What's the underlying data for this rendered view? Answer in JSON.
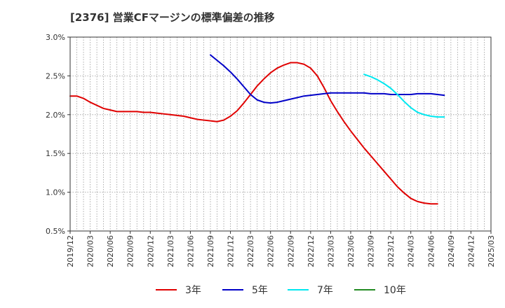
{
  "title": "[2376]  営業CFマージンの標準偏差の推移",
  "chart_data": {
    "type": "line",
    "title": "[2376]  営業CFマージンの標準偏差の推移",
    "xlabel": "",
    "ylabel": "",
    "ylim": [
      0.5,
      3.0
    ],
    "yticks": [
      0.5,
      1.0,
      1.5,
      2.0,
      2.5,
      3.0
    ],
    "ytick_labels": [
      "0.5%",
      "1.0%",
      "1.5%",
      "2.0%",
      "2.5%",
      "3.0%"
    ],
    "x_range": [
      "2019/12",
      "2025/03"
    ],
    "xtick_labels": [
      "2019/12",
      "2020/03",
      "2020/06",
      "2020/09",
      "2020/12",
      "2021/03",
      "2021/06",
      "2021/09",
      "2021/12",
      "2022/03",
      "2022/06",
      "2022/09",
      "2022/12",
      "2023/03",
      "2023/06",
      "2023/09",
      "2023/12",
      "2024/03",
      "2024/06",
      "2024/09",
      "2024/12",
      "2025/03"
    ],
    "grid": true,
    "legend_position": "bottom",
    "series": [
      {
        "name": "3年",
        "color": "#e00000",
        "points": [
          [
            "2019/12",
            2.24
          ],
          [
            "2020/01",
            2.24
          ],
          [
            "2020/02",
            2.21
          ],
          [
            "2020/03",
            2.16
          ],
          [
            "2020/04",
            2.12
          ],
          [
            "2020/05",
            2.08
          ],
          [
            "2020/06",
            2.06
          ],
          [
            "2020/07",
            2.04
          ],
          [
            "2020/08",
            2.04
          ],
          [
            "2020/09",
            2.04
          ],
          [
            "2020/10",
            2.04
          ],
          [
            "2020/11",
            2.03
          ],
          [
            "2020/12",
            2.03
          ],
          [
            "2021/01",
            2.02
          ],
          [
            "2021/02",
            2.01
          ],
          [
            "2021/03",
            2.0
          ],
          [
            "2021/04",
            1.99
          ],
          [
            "2021/05",
            1.98
          ],
          [
            "2021/06",
            1.96
          ],
          [
            "2021/07",
            1.94
          ],
          [
            "2021/08",
            1.93
          ],
          [
            "2021/09",
            1.92
          ],
          [
            "2021/10",
            1.91
          ],
          [
            "2021/11",
            1.93
          ],
          [
            "2021/12",
            1.98
          ],
          [
            "2022/01",
            2.05
          ],
          [
            "2022/02",
            2.15
          ],
          [
            "2022/03",
            2.26
          ],
          [
            "2022/04",
            2.37
          ],
          [
            "2022/05",
            2.46
          ],
          [
            "2022/06",
            2.54
          ],
          [
            "2022/07",
            2.6
          ],
          [
            "2022/08",
            2.64
          ],
          [
            "2022/09",
            2.67
          ],
          [
            "2022/10",
            2.67
          ],
          [
            "2022/11",
            2.65
          ],
          [
            "2022/12",
            2.6
          ],
          [
            "2023/01",
            2.5
          ],
          [
            "2023/02",
            2.35
          ],
          [
            "2023/03",
            2.18
          ],
          [
            "2023/04",
            2.04
          ],
          [
            "2023/05",
            1.91
          ],
          [
            "2023/06",
            1.79
          ],
          [
            "2023/07",
            1.68
          ],
          [
            "2023/08",
            1.57
          ],
          [
            "2023/09",
            1.47
          ],
          [
            "2023/10",
            1.37
          ],
          [
            "2023/11",
            1.27
          ],
          [
            "2023/12",
            1.17
          ],
          [
            "2024/01",
            1.07
          ],
          [
            "2024/02",
            0.99
          ],
          [
            "2024/03",
            0.92
          ],
          [
            "2024/04",
            0.88
          ],
          [
            "2024/05",
            0.86
          ],
          [
            "2024/06",
            0.85
          ],
          [
            "2024/07",
            0.85
          ]
        ]
      },
      {
        "name": "5年",
        "color": "#0000c8",
        "points": [
          [
            "2021/09",
            2.77
          ],
          [
            "2021/10",
            2.7
          ],
          [
            "2021/11",
            2.63
          ],
          [
            "2021/12",
            2.55
          ],
          [
            "2022/01",
            2.46
          ],
          [
            "2022/02",
            2.36
          ],
          [
            "2022/03",
            2.26
          ],
          [
            "2022/04",
            2.19
          ],
          [
            "2022/05",
            2.16
          ],
          [
            "2022/06",
            2.15
          ],
          [
            "2022/07",
            2.16
          ],
          [
            "2022/08",
            2.18
          ],
          [
            "2022/09",
            2.2
          ],
          [
            "2022/10",
            2.22
          ],
          [
            "2022/11",
            2.24
          ],
          [
            "2022/12",
            2.25
          ],
          [
            "2023/01",
            2.26
          ],
          [
            "2023/02",
            2.27
          ],
          [
            "2023/03",
            2.28
          ],
          [
            "2023/04",
            2.28
          ],
          [
            "2023/05",
            2.28
          ],
          [
            "2023/06",
            2.28
          ],
          [
            "2023/07",
            2.28
          ],
          [
            "2023/08",
            2.28
          ],
          [
            "2023/09",
            2.27
          ],
          [
            "2023/10",
            2.27
          ],
          [
            "2023/11",
            2.27
          ],
          [
            "2023/12",
            2.26
          ],
          [
            "2024/01",
            2.26
          ],
          [
            "2024/02",
            2.26
          ],
          [
            "2024/03",
            2.26
          ],
          [
            "2024/04",
            2.27
          ],
          [
            "2024/05",
            2.27
          ],
          [
            "2024/06",
            2.27
          ],
          [
            "2024/07",
            2.26
          ],
          [
            "2024/08",
            2.25
          ]
        ]
      },
      {
        "name": "7年",
        "color": "#00e8f0",
        "points": [
          [
            "2023/08",
            2.52
          ],
          [
            "2023/09",
            2.49
          ],
          [
            "2023/10",
            2.45
          ],
          [
            "2023/11",
            2.4
          ],
          [
            "2023/12",
            2.34
          ],
          [
            "2024/01",
            2.26
          ],
          [
            "2024/02",
            2.17
          ],
          [
            "2024/03",
            2.09
          ],
          [
            "2024/04",
            2.03
          ],
          [
            "2024/05",
            2.0
          ],
          [
            "2024/06",
            1.98
          ],
          [
            "2024/07",
            1.97
          ],
          [
            "2024/08",
            1.97
          ]
        ]
      },
      {
        "name": "10年",
        "color": "#228b22",
        "points": []
      }
    ]
  }
}
